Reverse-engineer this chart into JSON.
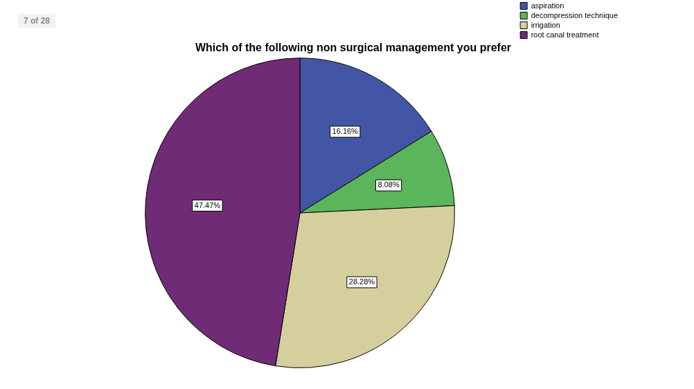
{
  "chart_data": {
    "type": "pie",
    "title": "Which of the following non surgical management you prefer",
    "categories": [
      "aspiration",
      "decompression technique",
      "irrigation",
      "root canal treatment"
    ],
    "values": [
      16.16,
      8.08,
      28.28,
      47.47
    ],
    "value_labels": [
      "16.16%",
      "8.08%",
      "28.28%",
      "47.47%"
    ],
    "colors": [
      "#4356a6",
      "#5bb55a",
      "#d5cf9e",
      "#702b76"
    ],
    "legend": "top right",
    "annotations": [
      "7 of 28"
    ]
  }
}
